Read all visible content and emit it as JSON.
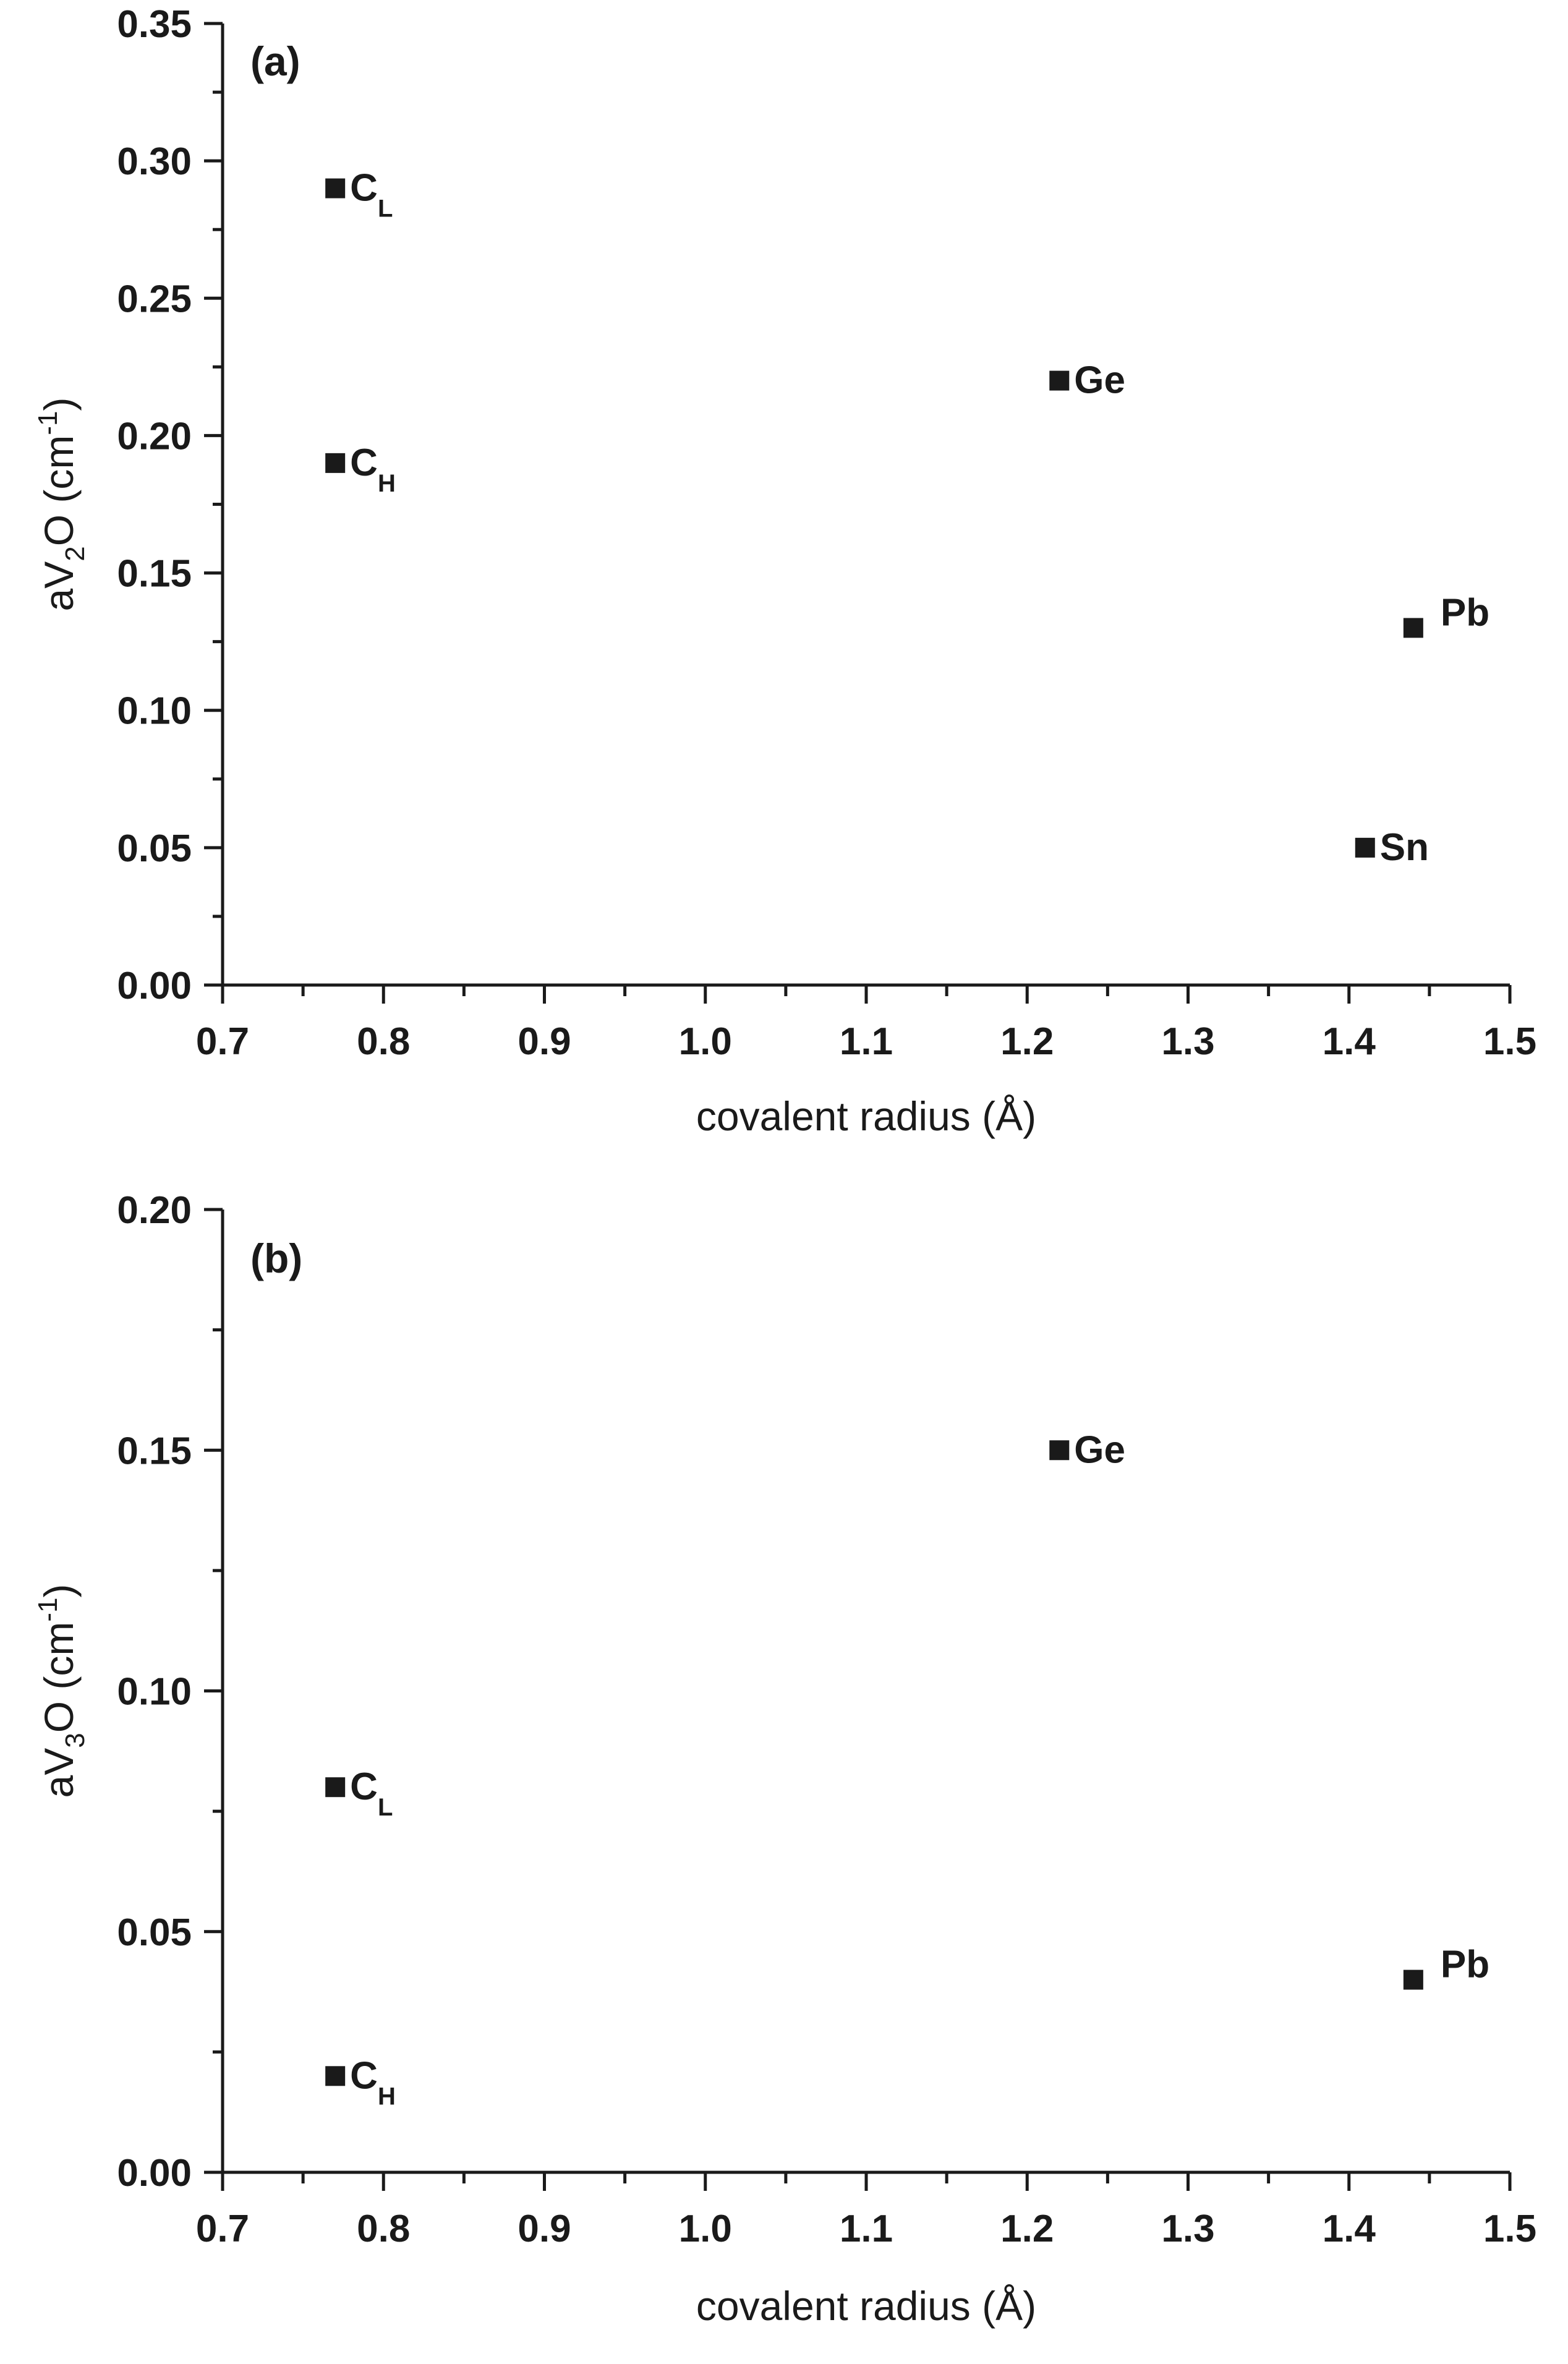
{
  "figure": {
    "panels": [
      {
        "tag": "(a)",
        "ylabel_main": "aV",
        "ylabel_sub": "2",
        "ylabel_rest": "O (cm",
        "ylabel_sup": "-1",
        "ylabel_close": ")",
        "xlabel": "covalent radius (Å)"
      },
      {
        "tag": "(b)",
        "ylabel_main": "aV",
        "ylabel_sub": "3",
        "ylabel_rest": "O (cm",
        "ylabel_sup": "-1",
        "ylabel_close": ")",
        "xlabel": "covalent radius (Å)"
      }
    ]
  },
  "chart_data": [
    {
      "type": "scatter",
      "title": "(a)",
      "xlabel": "covalent radius (Å)",
      "ylabel": "aV2O (cm^-1)",
      "xlim": [
        0.7,
        1.5
      ],
      "ylim": [
        0.0,
        0.35
      ],
      "xticks": [
        "0.7",
        "0.8",
        "0.9",
        "1.0",
        "1.1",
        "1.2",
        "1.3",
        "1.4",
        "1.5"
      ],
      "yticks": [
        "0.00",
        "0.05",
        "0.10",
        "0.15",
        "0.20",
        "0.25",
        "0.30",
        "0.35"
      ],
      "grid": false,
      "marker": "filled-square",
      "marker_color": "#1a1a1a",
      "points": [
        {
          "label": "C",
          "label_sub": "L",
          "x": 0.77,
          "y": 0.29
        },
        {
          "label": "C",
          "label_sub": "H",
          "x": 0.77,
          "y": 0.19
        },
        {
          "label": "Ge",
          "label_sub": "",
          "x": 1.22,
          "y": 0.22
        },
        {
          "label": "Pb",
          "label_sub": "",
          "x": 1.44,
          "y": 0.13
        },
        {
          "label": "Sn",
          "label_sub": "",
          "x": 1.41,
          "y": 0.05
        }
      ]
    },
    {
      "type": "scatter",
      "title": "(b)",
      "xlabel": "covalent radius (Å)",
      "ylabel": "aV3O (cm^-1)",
      "xlim": [
        0.7,
        1.5
      ],
      "ylim": [
        0.0,
        0.2
      ],
      "xticks": [
        "0.7",
        "0.8",
        "0.9",
        "1.0",
        "1.1",
        "1.2",
        "1.3",
        "1.4",
        "1.5"
      ],
      "yticks": [
        "0.00",
        "0.05",
        "0.10",
        "0.15",
        "0.20"
      ],
      "grid": false,
      "marker": "filled-square",
      "marker_color": "#1a1a1a",
      "points": [
        {
          "label": "Ge",
          "label_sub": "",
          "x": 1.22,
          "y": 0.15
        },
        {
          "label": "C",
          "label_sub": "L",
          "x": 0.77,
          "y": 0.08
        },
        {
          "label": "C",
          "label_sub": "H",
          "x": 0.77,
          "y": 0.02
        },
        {
          "label": "Pb",
          "label_sub": "",
          "x": 1.44,
          "y": 0.04
        }
      ]
    }
  ]
}
